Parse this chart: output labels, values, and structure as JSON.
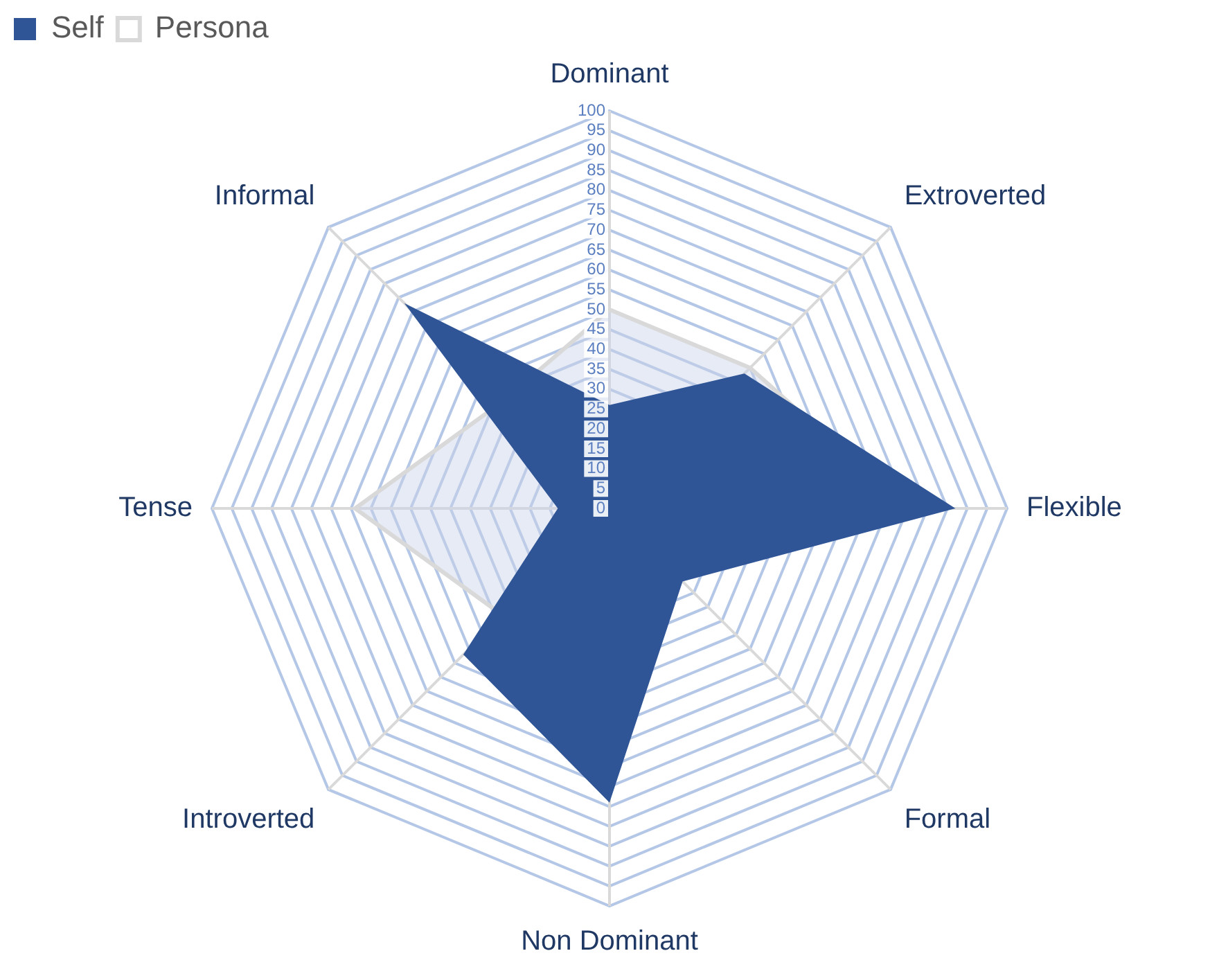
{
  "chart_data": {
    "type": "radar",
    "categories": [
      "Dominant",
      "Extroverted",
      "Flexible",
      "Formal",
      "Non Dominant",
      "Introverted",
      "Tense",
      "Informal"
    ],
    "series": [
      {
        "name": "Self",
        "color": "#2f5597",
        "values": [
          26,
          48,
          87,
          26,
          74,
          52,
          13,
          73
        ]
      },
      {
        "name": "Persona",
        "color": "#d9d9d9",
        "values": [
          50,
          50,
          75,
          25,
          62,
          38,
          64,
          38
        ]
      }
    ],
    "ylim": [
      0,
      100
    ],
    "yticks": [
      0,
      5,
      10,
      15,
      20,
      25,
      30,
      35,
      40,
      45,
      50,
      55,
      60,
      65,
      70,
      75,
      80,
      85,
      90,
      95,
      100
    ],
    "grid": true,
    "legend": "top left"
  }
}
